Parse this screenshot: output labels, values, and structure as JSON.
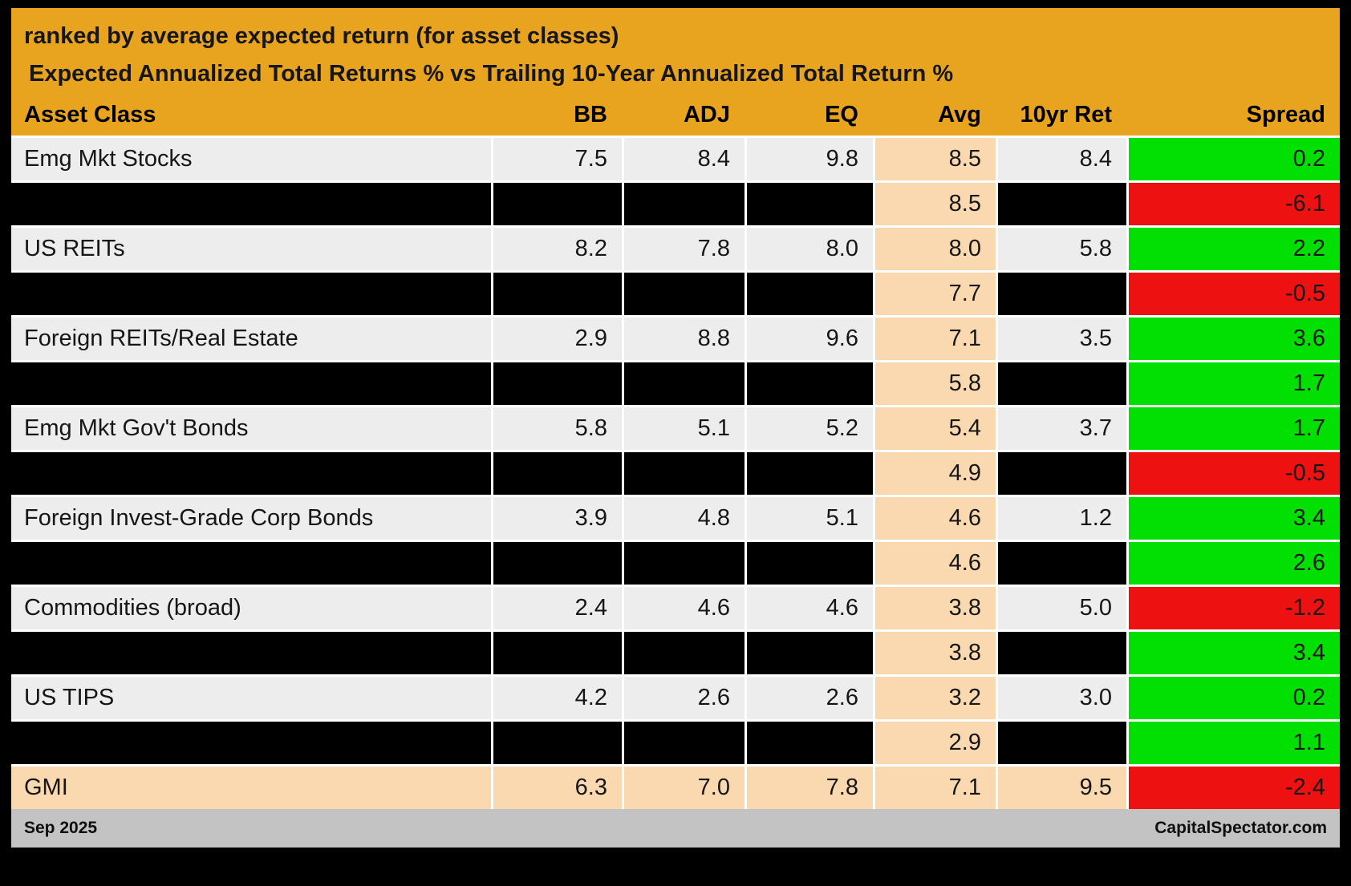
{
  "title": "ranked by average expected return (for asset classes)",
  "subtitle": "Expected Annualized Total Returns % vs Trailing 10-Year Annualized Total Return %",
  "chart_data": {
    "type": "table",
    "columns": [
      "Asset Class",
      "BB",
      "ADJ",
      "EQ",
      "Avg",
      "10yr Ret",
      "Spread"
    ],
    "rows": [
      {
        "asset": "Emg Mkt Stocks",
        "bb": "7.5",
        "adj": "8.4",
        "eq": "9.8",
        "avg": "8.5",
        "ret10": "8.4",
        "spread": "0.2",
        "spread_color": "green",
        "redacted": false,
        "highlight": false
      },
      {
        "asset": "",
        "bb": "",
        "adj": "",
        "eq": "",
        "avg": "8.5",
        "ret10": "",
        "spread": "-6.1",
        "spread_color": "red",
        "redacted": true,
        "highlight": false
      },
      {
        "asset": "US REITs",
        "bb": "8.2",
        "adj": "7.8",
        "eq": "8.0",
        "avg": "8.0",
        "ret10": "5.8",
        "spread": "2.2",
        "spread_color": "green",
        "redacted": false,
        "highlight": false
      },
      {
        "asset": "",
        "bb": "",
        "adj": "",
        "eq": "",
        "avg": "7.7",
        "ret10": "",
        "spread": "-0.5",
        "spread_color": "red",
        "redacted": true,
        "highlight": false
      },
      {
        "asset": "Foreign REITs/Real Estate",
        "bb": "2.9",
        "adj": "8.8",
        "eq": "9.6",
        "avg": "7.1",
        "ret10": "3.5",
        "spread": "3.6",
        "spread_color": "green",
        "redacted": false,
        "highlight": false
      },
      {
        "asset": "",
        "bb": "",
        "adj": "",
        "eq": "",
        "avg": "5.8",
        "ret10": "",
        "spread": "1.7",
        "spread_color": "green",
        "redacted": true,
        "highlight": false
      },
      {
        "asset": "Emg Mkt Gov't Bonds",
        "bb": "5.8",
        "adj": "5.1",
        "eq": "5.2",
        "avg": "5.4",
        "ret10": "3.7",
        "spread": "1.7",
        "spread_color": "green",
        "redacted": false,
        "highlight": false
      },
      {
        "asset": "",
        "bb": "",
        "adj": "",
        "eq": "",
        "avg": "4.9",
        "ret10": "",
        "spread": "-0.5",
        "spread_color": "red",
        "redacted": true,
        "highlight": false
      },
      {
        "asset": "Foreign Invest-Grade Corp Bonds",
        "bb": "3.9",
        "adj": "4.8",
        "eq": "5.1",
        "avg": "4.6",
        "ret10": "1.2",
        "spread": "3.4",
        "spread_color": "green",
        "redacted": false,
        "highlight": false
      },
      {
        "asset": "",
        "bb": "",
        "adj": "",
        "eq": "",
        "avg": "4.6",
        "ret10": "",
        "spread": "2.6",
        "spread_color": "green",
        "redacted": true,
        "highlight": false
      },
      {
        "asset": "Commodities (broad)",
        "bb": "2.4",
        "adj": "4.6",
        "eq": "4.6",
        "avg": "3.8",
        "ret10": "5.0",
        "spread": "-1.2",
        "spread_color": "red",
        "redacted": false,
        "highlight": false
      },
      {
        "asset": "",
        "bb": "",
        "adj": "",
        "eq": "",
        "avg": "3.8",
        "ret10": "",
        "spread": "3.4",
        "spread_color": "green",
        "redacted": true,
        "highlight": false
      },
      {
        "asset": "US TIPS",
        "bb": "4.2",
        "adj": "2.6",
        "eq": "2.6",
        "avg": "3.2",
        "ret10": "3.0",
        "spread": "0.2",
        "spread_color": "green",
        "redacted": false,
        "highlight": false
      },
      {
        "asset": "",
        "bb": "",
        "adj": "",
        "eq": "",
        "avg": "2.9",
        "ret10": "",
        "spread": "1.1",
        "spread_color": "green",
        "redacted": true,
        "highlight": false
      },
      {
        "asset": "GMI",
        "bb": "6.3",
        "adj": "7.0",
        "eq": "7.8",
        "avg": "7.1",
        "ret10": "9.5",
        "spread": "-2.4",
        "spread_color": "red",
        "redacted": false,
        "highlight": true
      }
    ]
  },
  "footer": {
    "left": "Sep 2025",
    "right": "CapitalSpectator.com"
  },
  "colors": {
    "header_gold": "#E8A41E",
    "row_bg": "#EDEDED",
    "avg_bg": "#FBD9B0",
    "spread_green": "#02DF02",
    "spread_red": "#ED1111",
    "redacted": "#000000",
    "footer_bg": "#C3C3C3",
    "text": "#161616"
  }
}
